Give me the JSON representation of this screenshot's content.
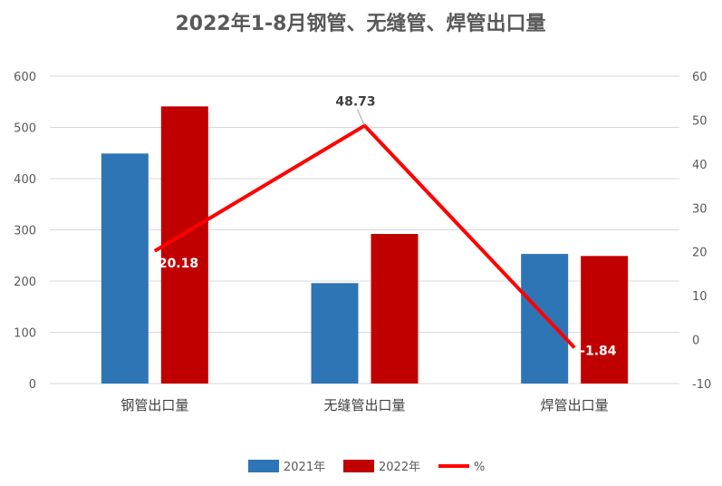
{
  "chart_data": {
    "type": "bar",
    "title": "2022年1-8月钢管、无缝管、焊管出口量",
    "categories": [
      "钢管出口量",
      "无缝管出口量",
      "焊管出口量"
    ],
    "series": [
      {
        "name": "2021年",
        "type": "bar",
        "axis": "left",
        "color": "#2E75B6",
        "values": [
          449,
          196,
          253
        ]
      },
      {
        "name": "2022年",
        "type": "bar",
        "axis": "left",
        "color": "#C00000",
        "values": [
          541,
          292,
          249
        ]
      },
      {
        "name": "%",
        "type": "line",
        "axis": "right",
        "color": "#FF0000",
        "values": [
          20.18,
          48.73,
          -1.84
        ],
        "labels": [
          "20.18",
          "48.73",
          "-1.84"
        ]
      }
    ],
    "ylim_left": [
      0,
      600
    ],
    "ylim_right": [
      -10,
      60
    ],
    "yticks_left": [
      "0",
      "100",
      "200",
      "300",
      "400",
      "500",
      "600"
    ],
    "yticks_right": [
      "-10",
      "0",
      "10",
      "20",
      "30",
      "40",
      "50",
      "60"
    ],
    "grid": true,
    "legend_position": "bottom"
  }
}
